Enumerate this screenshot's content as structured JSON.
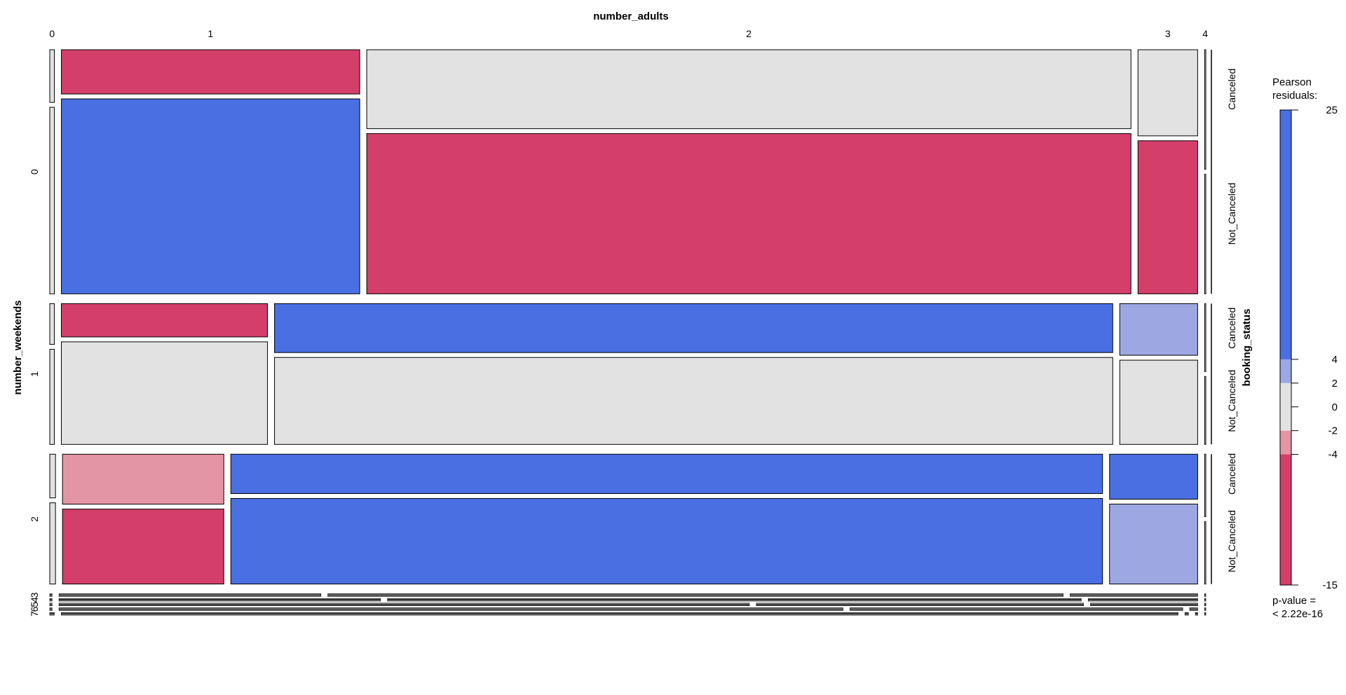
{
  "chart_data": {
    "type": "mosaic",
    "title": "",
    "variables": {
      "col": "number_adults",
      "row": "number_weekends",
      "split": "booking_status"
    },
    "col_levels": [
      "0",
      "1",
      "2",
      "3",
      "4"
    ],
    "row_levels": [
      "0",
      "1",
      "2",
      "3",
      "4",
      "5",
      "6",
      "7"
    ],
    "status_levels": [
      "Canceled",
      "Not_Canceled"
    ],
    "rows": [
      {
        "level": "0",
        "share": 0.378,
        "cols": [
          {
            "level": "0",
            "share": 0.004,
            "canceled": 0.22,
            "res": [
              0,
              0
            ]
          },
          {
            "level": "1",
            "share": 0.26,
            "canceled": 0.185,
            "res": [
              -6,
              10
            ]
          },
          {
            "level": "2",
            "share": 0.666,
            "canceled": 0.33,
            "res": [
              0,
              -8
            ]
          },
          {
            "level": "3",
            "share": 0.052,
            "canceled": 0.36,
            "res": [
              0,
              -5
            ]
          },
          {
            "level": "4",
            "share": 0.001,
            "canceled": 0.5,
            "res": [
              0,
              0
            ]
          }
        ]
      },
      {
        "level": "1",
        "share": 0.218,
        "cols": [
          {
            "level": "0",
            "share": 0.004,
            "canceled": 0.3,
            "res": [
              0,
              0
            ]
          },
          {
            "level": "1",
            "share": 0.18,
            "canceled": 0.245,
            "res": [
              -5,
              0
            ]
          },
          {
            "level": "2",
            "share": 0.732,
            "canceled": 0.36,
            "res": [
              6,
              0
            ]
          },
          {
            "level": "3",
            "share": 0.068,
            "canceled": 0.38,
            "res": [
              3,
              0
            ]
          },
          {
            "level": "4",
            "share": 0.001,
            "canceled": 0.5,
            "res": [
              0,
              0
            ]
          }
        ]
      },
      {
        "level": "2",
        "share": 0.201,
        "cols": [
          {
            "level": "0",
            "share": 0.005,
            "canceled": 0.35,
            "res": [
              0,
              0
            ]
          },
          {
            "level": "1",
            "share": 0.141,
            "canceled": 0.4,
            "res": [
              -3,
              -6
            ]
          },
          {
            "level": "2",
            "share": 0.762,
            "canceled": 0.315,
            "res": [
              6,
              6
            ]
          },
          {
            "level": "3",
            "share": 0.077,
            "canceled": 0.36,
            "res": [
              6,
              3
            ]
          },
          {
            "level": "4",
            "share": 0.001,
            "canceled": 0.5,
            "res": [
              0,
              0
            ]
          }
        ]
      },
      {
        "level": "3",
        "share": 0.004,
        "cols": [
          {
            "level": "0",
            "share": 0.002,
            "canceled": 0.5,
            "res": [
              0,
              0
            ]
          },
          {
            "level": "1",
            "share": 0.23,
            "canceled": 0.5,
            "res": [
              0,
              0
            ]
          },
          {
            "level": "2",
            "share": 0.646,
            "canceled": 0.5,
            "res": [
              0,
              0
            ]
          },
          {
            "level": "3",
            "share": 0.112,
            "canceled": 0.5,
            "res": [
              0,
              0
            ]
          },
          {
            "level": "4",
            "share": 0.001,
            "canceled": 0.5,
            "res": [
              0,
              0
            ]
          }
        ]
      },
      {
        "level": "4",
        "share": 0.004,
        "cols": [
          {
            "level": "0",
            "share": 0.002,
            "canceled": 0.5,
            "res": [
              0,
              0
            ]
          },
          {
            "level": "1",
            "share": 0.285,
            "canceled": 0.5,
            "res": [
              0,
              0
            ]
          },
          {
            "level": "2",
            "share": 0.615,
            "canceled": 0.5,
            "res": [
              0,
              0
            ]
          },
          {
            "level": "3",
            "share": 0.097,
            "canceled": 0.5,
            "res": [
              0,
              0
            ]
          },
          {
            "level": "4",
            "share": 0.001,
            "canceled": 0.5,
            "res": [
              0,
              0
            ]
          }
        ]
      },
      {
        "level": "5",
        "share": 0.004,
        "cols": [
          {
            "level": "0",
            "share": 0.002,
            "canceled": 0.5,
            "res": [
              0,
              0
            ]
          },
          {
            "level": "1",
            "share": 0.612,
            "canceled": 0.5,
            "res": [
              0,
              0
            ]
          },
          {
            "level": "2",
            "share": 0.29,
            "canceled": 0.5,
            "res": [
              0,
              0
            ]
          },
          {
            "level": "3",
            "share": 0.095,
            "canceled": 0.5,
            "res": [
              0,
              0
            ]
          },
          {
            "level": "4",
            "share": 0.001,
            "canceled": 0.5,
            "res": [
              0,
              0
            ]
          }
        ]
      },
      {
        "level": "6",
        "share": 0.004,
        "cols": [
          {
            "level": "0",
            "share": 0.002,
            "canceled": 0.5,
            "res": [
              0,
              0
            ]
          },
          {
            "level": "1",
            "share": 0.695,
            "canceled": 0.5,
            "res": [
              0,
              0
            ]
          },
          {
            "level": "2",
            "share": 0.295,
            "canceled": 0.5,
            "res": [
              0,
              0
            ]
          },
          {
            "level": "3",
            "share": 0.007,
            "canceled": 0.5,
            "res": [
              0,
              0
            ]
          },
          {
            "level": "4",
            "share": 0.001,
            "canceled": 0.5,
            "res": [
              0,
              0
            ]
          }
        ]
      },
      {
        "level": "7",
        "share": 0.004,
        "cols": [
          {
            "level": "0",
            "share": 0.004,
            "canceled": 0.5,
            "res": [
              0,
              0
            ]
          },
          {
            "level": "1",
            "share": 0.99,
            "canceled": 0.5,
            "res": [
              0,
              0
            ]
          },
          {
            "level": "2",
            "share": 0.003,
            "canceled": 0.5,
            "res": [
              0,
              0
            ]
          },
          {
            "level": "3",
            "share": 0.002,
            "canceled": 0.5,
            "res": [
              0,
              0
            ]
          },
          {
            "level": "4",
            "share": 0.001,
            "canceled": 0.5,
            "res": [
              0,
              0
            ]
          }
        ]
      }
    ],
    "legend": {
      "title_line1": "Pearson",
      "title_line2": "residuals:",
      "ticks": [
        25,
        4,
        2,
        0,
        -2,
        -4,
        -15
      ],
      "range": [
        -15,
        25
      ],
      "placement": "right",
      "pvalue_line1": "p-value =",
      "pvalue_line2": "< 2.22e-16"
    },
    "colors": {
      "high_pos": "#4A6FE3",
      "mid_pos": "#9DA8E2",
      "neutral": "#E2E2E2",
      "mid_neg": "#E495A5",
      "high_neg": "#D33F6A"
    }
  }
}
